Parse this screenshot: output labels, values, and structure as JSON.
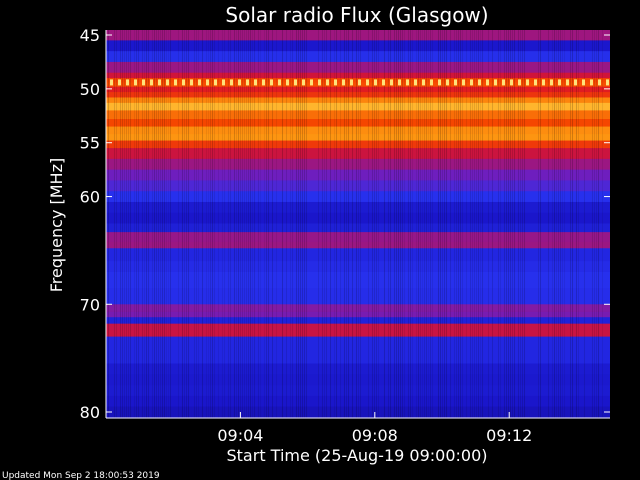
{
  "chart_data": {
    "type": "heatmap",
    "title": "Solar radio Flux (Glasgow)",
    "ylabel": "Frequency [MHz]",
    "xlabel": "Start Time (25-Aug-19 09:00:00)",
    "y_ticks": [
      45,
      50,
      55,
      60,
      70,
      80
    ],
    "y_tick_labels": [
      "45",
      "50",
      "55",
      "60",
      "70",
      "80"
    ],
    "x_ticks_minutes": [
      4,
      8,
      12
    ],
    "x_tick_labels": [
      "09:04",
      "09:08",
      "09:12"
    ],
    "x_range_minutes": [
      0,
      15
    ],
    "y_range_mhz": [
      45,
      80
    ],
    "footer": "Updated Mon Sep  2 18:00:53 2019",
    "colors": {
      "background": "#000000",
      "text": "#ffffff",
      "colormap": "blue-red-yellow-white"
    },
    "spectral_profile": [
      {
        "f": 45.0,
        "v": 0.15
      },
      {
        "f": 45.2,
        "v": 0.8
      },
      {
        "f": 45.5,
        "v": 0.15
      },
      {
        "f": 46.5,
        "v": 0.12
      },
      {
        "f": 47.5,
        "v": 0.35
      },
      {
        "f": 48.5,
        "v": 0.58
      },
      {
        "f": 49.0,
        "v": 0.6
      },
      {
        "f": 49.4,
        "v": 0.88
      },
      {
        "f": 49.8,
        "v": 0.62
      },
      {
        "f": 50.3,
        "v": 0.66
      },
      {
        "f": 50.8,
        "v": 0.74
      },
      {
        "f": 51.3,
        "v": 0.9
      },
      {
        "f": 52.0,
        "v": 0.86
      },
      {
        "f": 52.8,
        "v": 0.72
      },
      {
        "f": 53.5,
        "v": 0.76
      },
      {
        "f": 54.2,
        "v": 0.9
      },
      {
        "f": 54.8,
        "v": 0.78
      },
      {
        "f": 55.5,
        "v": 0.64
      },
      {
        "f": 56.5,
        "v": 0.52
      },
      {
        "f": 57.5,
        "v": 0.42
      },
      {
        "f": 58.5,
        "v": 0.34
      },
      {
        "f": 59.5,
        "v": 0.3
      },
      {
        "f": 60.5,
        "v": 0.18
      },
      {
        "f": 61.5,
        "v": 0.12
      },
      {
        "f": 62.5,
        "v": 0.14
      },
      {
        "f": 63.3,
        "v": 0.2
      },
      {
        "f": 64.2,
        "v": 0.72
      },
      {
        "f": 64.8,
        "v": 0.22
      },
      {
        "f": 66.0,
        "v": 0.18
      },
      {
        "f": 67.0,
        "v": 0.26
      },
      {
        "f": 68.5,
        "v": 0.22
      },
      {
        "f": 70.0,
        "v": 0.24
      },
      {
        "f": 70.7,
        "v": 0.6
      },
      {
        "f": 71.2,
        "v": 0.2
      },
      {
        "f": 71.8,
        "v": 0.16
      },
      {
        "f": 72.4,
        "v": 0.97
      },
      {
        "f": 73.0,
        "v": 0.18
      },
      {
        "f": 74.0,
        "v": 0.22
      },
      {
        "f": 75.5,
        "v": 0.18
      },
      {
        "f": 76.5,
        "v": 0.12
      },
      {
        "f": 77.5,
        "v": 0.16
      },
      {
        "f": 78.5,
        "v": 0.14
      },
      {
        "f": 79.5,
        "v": 0.12
      },
      {
        "f": 80.0,
        "v": 0.1
      }
    ]
  }
}
